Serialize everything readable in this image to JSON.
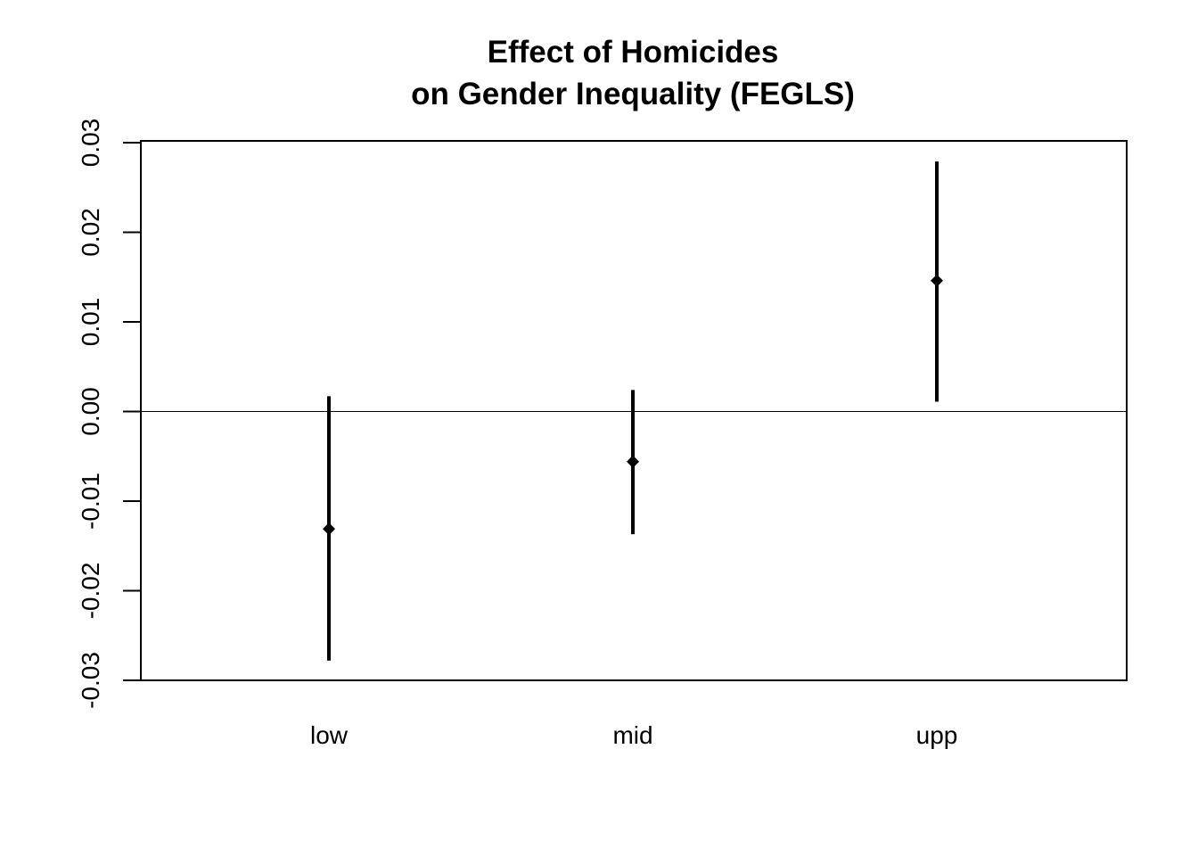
{
  "chart_data": {
    "type": "errorbar",
    "title": "Effect of Homicides",
    "subtitle": "on Gender Inequality (FEGLS)",
    "xlabel": "",
    "ylabel": "",
    "categories": [
      "low",
      "mid",
      "upp"
    ],
    "series": [
      {
        "estimate": [
          -0.0131,
          -0.0056,
          0.0146
        ],
        "lower": [
          -0.0278,
          -0.0137,
          0.0011
        ],
        "upper": [
          0.0017,
          0.0024,
          0.0279
        ]
      }
    ],
    "ylim": [
      -0.03,
      0.03
    ],
    "yticks": [
      "-0.03",
      "-0.02",
      "-0.01",
      "0.00",
      "0.01",
      "0.02",
      "0.03"
    ],
    "reference_line": 0,
    "grid": false,
    "legend": "none",
    "colors": {
      "marks": "#000000",
      "frame": "#000000",
      "background": "#ffffff"
    }
  }
}
